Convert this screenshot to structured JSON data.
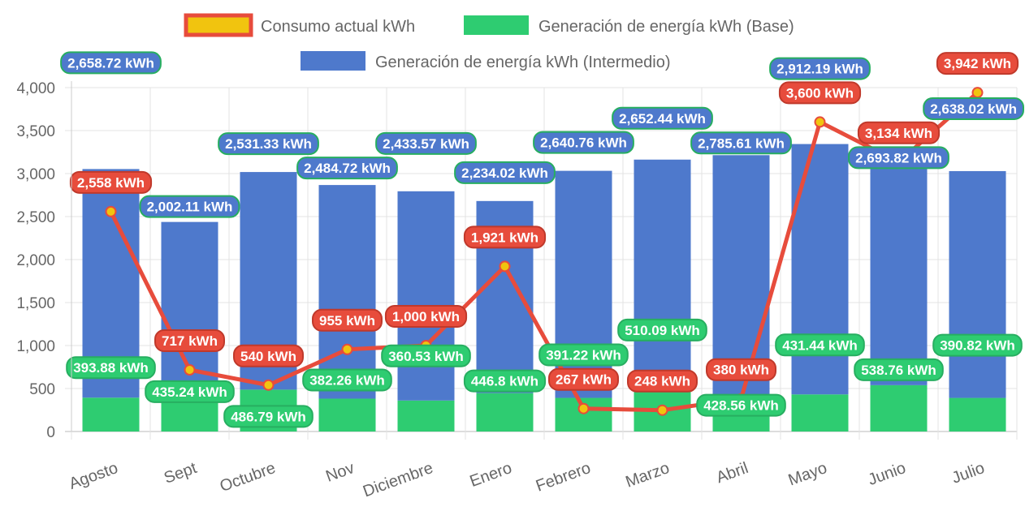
{
  "chart_data": {
    "type": "bar",
    "categories": [
      "Agosto",
      "Sept",
      "Octubre",
      "Nov",
      "Diciembre",
      "Enero",
      "Febrero",
      "Marzo",
      "Abril",
      "Mayo",
      "Junio",
      "Julio"
    ],
    "series": [
      {
        "name": "Consumo actual kWh",
        "type": "line",
        "color": "#e74c3c",
        "point_color": "#f1c40f",
        "values": [
          2558,
          717,
          540,
          955,
          1000,
          1921,
          267,
          248,
          380,
          3600,
          3134,
          3942
        ],
        "labels": [
          "2,558 kWh",
          "717 kWh",
          "540 kWh",
          "955 kWh",
          "1,000 kWh",
          "1,921 kWh",
          "267 kWh",
          "248 kWh",
          "380 kWh",
          "3,600 kWh",
          "3,134 kWh",
          "3,942 kWh"
        ]
      },
      {
        "name": "Generación de energía kWh (Base)",
        "type": "bar",
        "stack": "gen",
        "color": "#2ecc71",
        "values": [
          393.88,
          435.24,
          486.79,
          382.26,
          360.53,
          446.8,
          391.22,
          510.09,
          428.56,
          431.44,
          538.76,
          390.82
        ],
        "labels": [
          "393.88 kWh",
          "435.24 kWh",
          "486.79 kWh",
          "382.26 kWh",
          "360.53 kWh",
          "446.8 kWh",
          "391.22 kWh",
          "510.09 kWh",
          "428.56 kWh",
          "431.44 kWh",
          "538.76 kWh",
          "390.82 kWh"
        ]
      },
      {
        "name": "Generación de energía kWh (Intermedio)",
        "type": "bar",
        "stack": "gen",
        "color": "#4e79cc",
        "values": [
          2658.72,
          2002.11,
          2531.33,
          2484.72,
          2433.57,
          2234.02,
          2640.76,
          2652.44,
          2785.61,
          2912.19,
          2693.82,
          2638.02
        ],
        "labels": [
          "2,658.72 kWh",
          "2,002.11 kWh",
          "2,531.33 kWh",
          "2,484.72 kWh",
          "2,433.57 kWh",
          "2,234.02 kWh",
          "2,640.76 kWh",
          "2,652.44 kWh",
          "2,785.61 kWh",
          "2,912.19 kWh",
          "2,693.82 kWh",
          "2,638.02 kWh"
        ]
      }
    ],
    "yticks": [
      "0",
      "500",
      "1,000",
      "1,500",
      "2,000",
      "2,500",
      "3,000",
      "3,500",
      "4,000"
    ],
    "ylim": [
      0,
      4000
    ],
    "title": "",
    "xlabel": "",
    "ylabel": "",
    "grid": true,
    "legend": "top"
  }
}
